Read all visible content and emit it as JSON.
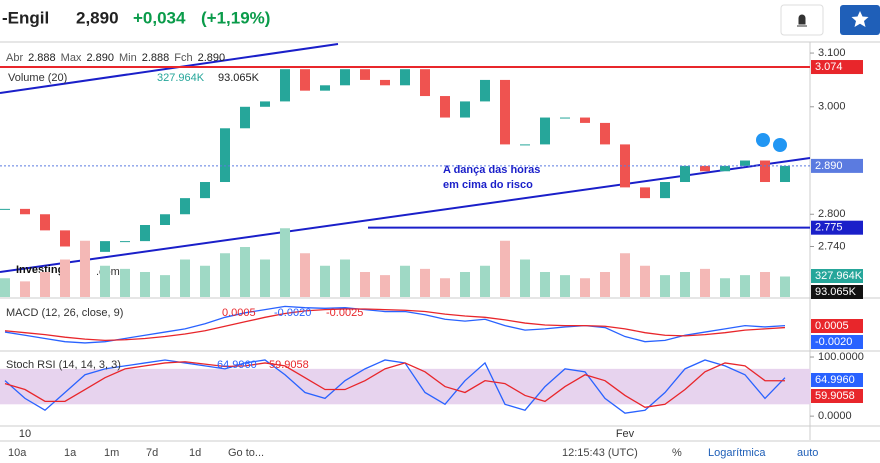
{
  "header": {
    "symbol": "-Engil",
    "price": "2,890",
    "change": "+0,034",
    "change_pct": "(+1,19%)"
  },
  "toolbar": [
    "10a",
    "1a",
    "1m",
    "7d",
    "1d",
    "Go to...",
    "12:15:43 (UTC)",
    "%",
    "Logarítmica",
    "auto"
  ],
  "chart_data": [
    {
      "type": "candlestick",
      "legend": [
        "Abr",
        "2.888",
        "Max",
        "2.890",
        "Min",
        "2.888",
        "Fch",
        "2.890"
      ],
      "logo": "Investing",
      "logo_suffix": ".com",
      "annotation": [
        "A dança das horas",
        "em cima do risco"
      ],
      "categories": [
        null,
        "10",
        null,
        null,
        null,
        null,
        null,
        null,
        null,
        null,
        null,
        null,
        null,
        null,
        null,
        null,
        null,
        null,
        null,
        null,
        null,
        null,
        null,
        null,
        null,
        null,
        null,
        null,
        null,
        null,
        null,
        "Fev",
        null,
        null,
        null,
        null,
        null,
        null,
        null,
        null
      ],
      "values": [
        2.81,
        2.8,
        2.77,
        2.74,
        2.73,
        2.75,
        2.75,
        2.78,
        2.8,
        2.83,
        2.86,
        2.96,
        3.0,
        3.01,
        3.07,
        3.03,
        3.04,
        3.07,
        3.05,
        3.04,
        3.07,
        3.02,
        2.98,
        3.01,
        3.05,
        2.93,
        2.93,
        2.98,
        2.98,
        2.97,
        2.93,
        2.85,
        2.83,
        2.86,
        2.89,
        2.88,
        2.89,
        2.9,
        2.86,
        2.89
      ],
      "color_up": "#26a69a",
      "color_down": "#ef5350",
      "ylim": [
        2.646,
        3.115
      ],
      "yticks": [
        {
          "value": 3.1,
          "label": "3.100"
        },
        {
          "value": 3.0,
          "label": "3.000"
        },
        {
          "value": 2.8,
          "label": "2.800"
        },
        {
          "value": 2.74,
          "label": "2.740"
        }
      ],
      "price_lines": [
        {
          "value": 3.074,
          "label": "3.074",
          "color": "#e8262b"
        },
        {
          "value": 2.89,
          "label": "2.890",
          "color": "#5b7be0"
        },
        {
          "value": 2.775,
          "label": "2.775",
          "color": "#1a1fc9"
        }
      ]
    },
    {
      "type": "bar",
      "title": "Volume (20)",
      "tags": [
        "327.964K",
        "93.065K"
      ],
      "values": [
        300,
        250,
        400,
        600,
        900,
        500,
        450,
        400,
        350,
        600,
        500,
        700,
        800,
        600,
        1100,
        700,
        500,
        600,
        400,
        350,
        500,
        450,
        300,
        400,
        500,
        900,
        600,
        400,
        350,
        300,
        400,
        700,
        500,
        350,
        400,
        450,
        300,
        350,
        400,
        327.964
      ],
      "ylim": [
        0,
        1600
      ]
    },
    {
      "type": "line",
      "title": "MACD (12, 26, close, 9)",
      "tags": [
        "0.0005",
        "-0.0020",
        "-0.0025"
      ],
      "ylim": [
        -0.0033,
        0.0045
      ],
      "series": [
        {
          "name": "MACD",
          "color": "#2962ff",
          "values": [
            -0.0005,
            -0.001,
            -0.0015,
            -0.002,
            -0.0022,
            -0.002,
            -0.0015,
            -0.001,
            -0.0005,
            0,
            0.0008,
            0.0018,
            0.0025,
            0.003,
            0.0035,
            0.0033,
            0.0032,
            0.0033,
            0.003,
            0.0027,
            0.0027,
            0.0022,
            0.0015,
            0.0012,
            0.0015,
            0.0005,
            -0.0002,
            0,
            0.0003,
            0.0005,
            0.0002,
            -0.0012,
            -0.002,
            -0.0018,
            -0.001,
            -0.0005,
            0,
            0.0005,
            0.0003,
            0.0005
          ]
        },
        {
          "name": "Signal",
          "color": "#e8262b",
          "values": [
            -0.0003,
            -0.0006,
            -0.0009,
            -0.0013,
            -0.0016,
            -0.0018,
            -0.0017,
            -0.0015,
            -0.0012,
            -0.0008,
            -0.0003,
            0.0004,
            0.0011,
            0.0018,
            0.0024,
            0.0028,
            0.003,
            0.0031,
            0.0031,
            0.003,
            0.0029,
            0.0027,
            0.0023,
            0.002,
            0.0018,
            0.0014,
            0.0009,
            0.0006,
            0.0005,
            0.0005,
            0.0004,
            0,
            -0.0006,
            -0.001,
            -0.0011,
            -0.0009,
            -0.0006,
            -0.0002,
            0,
            0.0002
          ]
        }
      ]
    },
    {
      "type": "line",
      "title": "Stoch RSI (14, 14, 3, 3)",
      "tags": [
        "64.9960",
        "59.9058"
      ],
      "ylim": [
        -15,
        108.5
      ],
      "yticks": [
        {
          "value": 100,
          "label": "100.0000"
        },
        {
          "value": 0,
          "label": "0.0000"
        }
      ],
      "band": [
        20,
        80
      ],
      "series": [
        {
          "name": "K",
          "color": "#2962ff",
          "values": [
            60,
            30,
            10,
            40,
            70,
            80,
            85,
            90,
            95,
            90,
            85,
            80,
            90,
            95,
            70,
            40,
            30,
            60,
            80,
            95,
            90,
            40,
            20,
            60,
            90,
            20,
            10,
            50,
            80,
            75,
            30,
            5,
            10,
            40,
            80,
            95,
            85,
            70,
            30,
            64.996
          ]
        },
        {
          "name": "D",
          "color": "#e8262b",
          "values": [
            55,
            45,
            25,
            25,
            45,
            65,
            80,
            85,
            90,
            92,
            88,
            84,
            85,
            90,
            85,
            65,
            45,
            45,
            60,
            80,
            90,
            75,
            50,
            40,
            60,
            55,
            35,
            25,
            50,
            70,
            60,
            35,
            15,
            20,
            45,
            75,
            90,
            85,
            60,
            59.9058
          ]
        }
      ]
    }
  ]
}
